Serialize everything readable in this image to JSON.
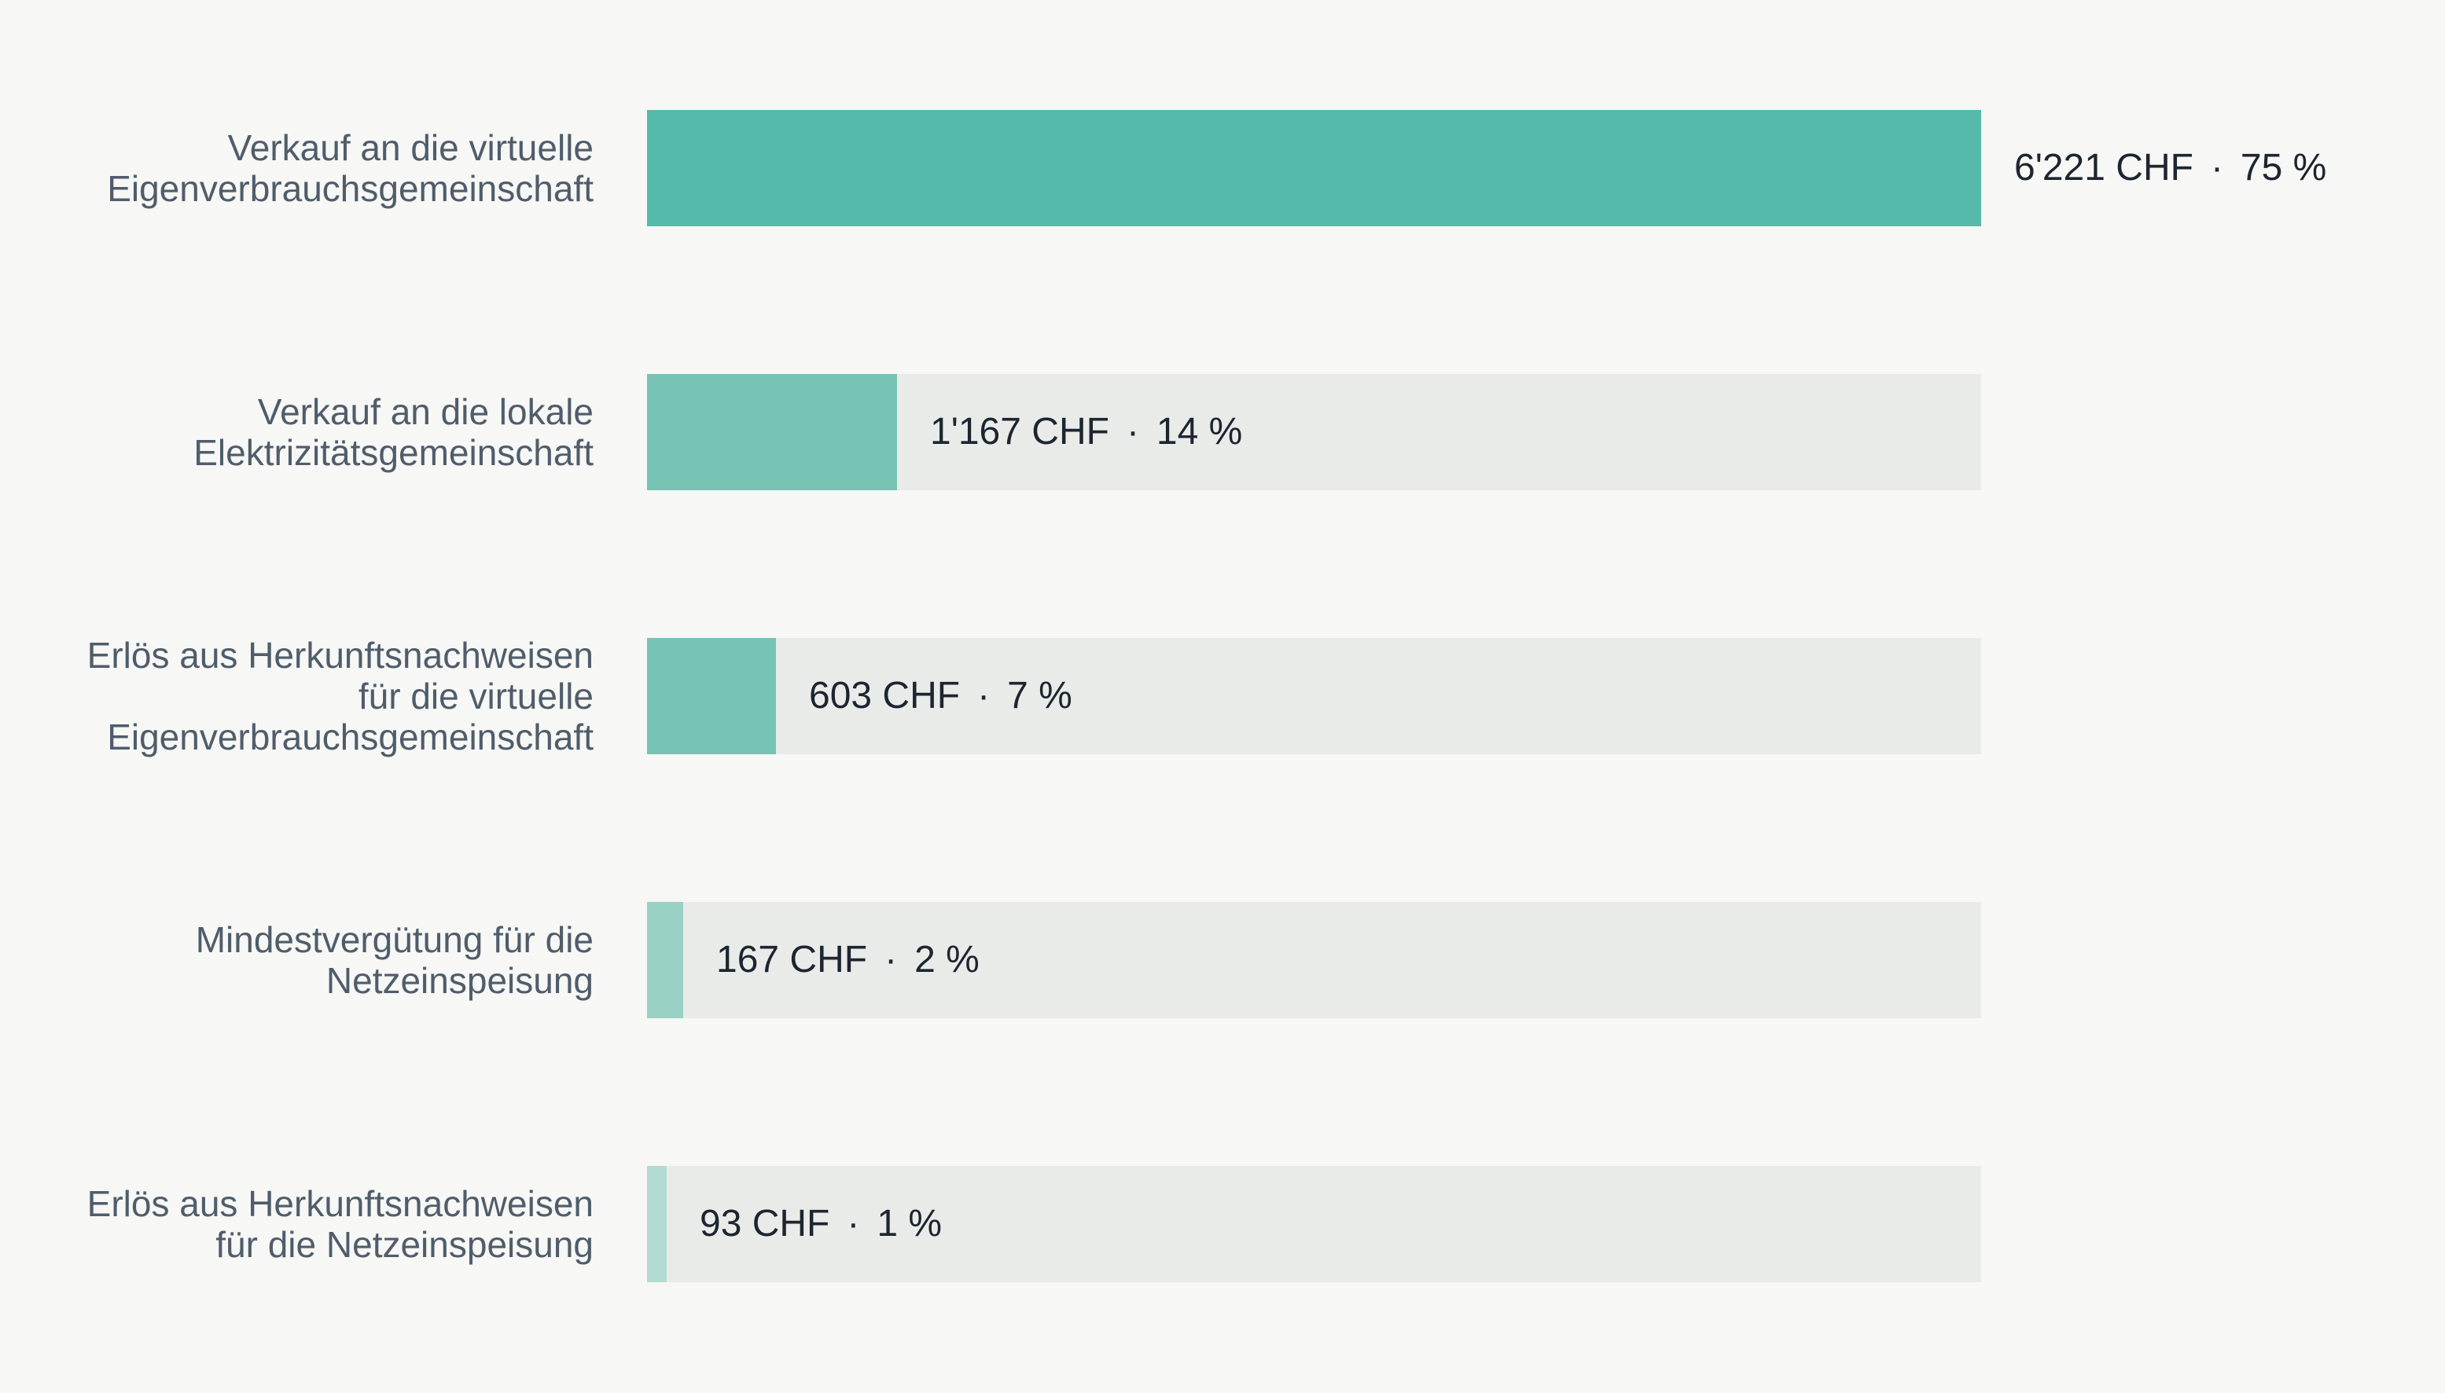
{
  "chart_data": {
    "type": "bar",
    "orientation": "horizontal",
    "categories": [
      "Verkauf an die virtuelle\nEigenverbrauchsgemeinschaft",
      "Verkauf an die lokale\nElektrizitätsgemeinschaft",
      "Erlös aus Herkunftsnachweisen\nfür die virtuelle\nEigenverbrauchsgemeinschaft",
      "Mindestvergütung für die\nNetzeinspeisung",
      "Erlös aus Herkunftsnachweisen\nfür die Netzeinspeisung"
    ],
    "values": [
      6221,
      1167,
      603,
      167,
      93
    ],
    "value_labels": [
      "6'221 CHF",
      "1'167 CHF",
      "603 CHF",
      "167 CHF",
      "93 CHF"
    ],
    "percent_labels": [
      "75 %",
      "14 %",
      "7 %",
      "2 %",
      "1 %"
    ],
    "separator": "·",
    "xlim": [
      0,
      6221
    ],
    "bar_colors": [
      "#55baa9",
      "#77c4b4",
      "#77c4b4",
      "#9ad1c5",
      "#b2dcd2"
    ],
    "track_color": "#e9ebe8",
    "grid": false,
    "legend": "none"
  }
}
